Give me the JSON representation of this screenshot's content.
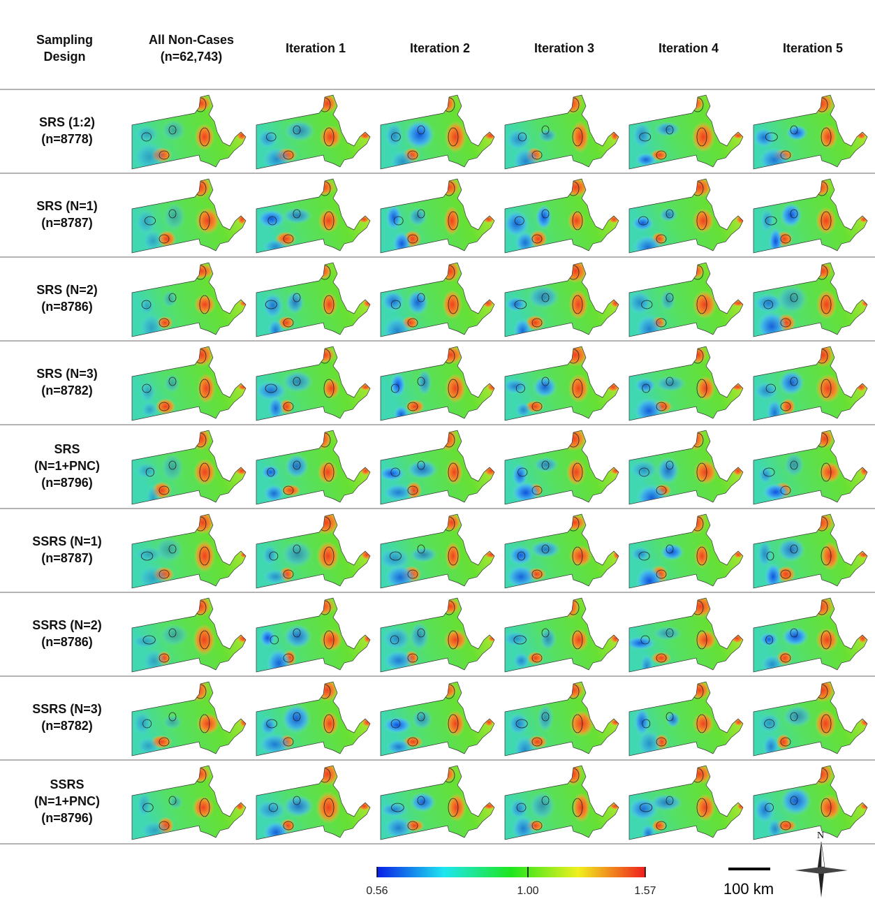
{
  "columns": [
    [
      "Sampling",
      "Design"
    ],
    [
      "All Non-Cases",
      "(n=62,743)"
    ],
    [
      "Iteration 1"
    ],
    [
      "Iteration 2"
    ],
    [
      "Iteration 3"
    ],
    [
      "Iteration 4"
    ],
    [
      "Iteration 5"
    ]
  ],
  "rows": [
    [
      "SRS (1:2)",
      "(n=8778)"
    ],
    [
      "SRS (N=1)",
      "(n=8787)"
    ],
    [
      "SRS (N=2)",
      "(n=8786)"
    ],
    [
      "SRS (N=3)",
      "(n=8782)"
    ],
    [
      "SRS",
      "(N=1+PNC)",
      "(n=8796)"
    ],
    [
      "SSRS (N=1)",
      "(n=8787)"
    ],
    [
      "SSRS (N=2)",
      "(n=8786)"
    ],
    [
      "SSRS (N=3)",
      "(n=8782)"
    ],
    [
      "SSRS",
      "(N=1+PNC)",
      "(n=8796)"
    ]
  ],
  "colorbar": {
    "lim": [
      0.56,
      1.57
    ],
    "log": true,
    "ticks": [
      0.56,
      {
        "value": 1,
        "label": "1.00"
      },
      1.57
    ]
  },
  "scale_bar": "100 km",
  "north": "N"
}
